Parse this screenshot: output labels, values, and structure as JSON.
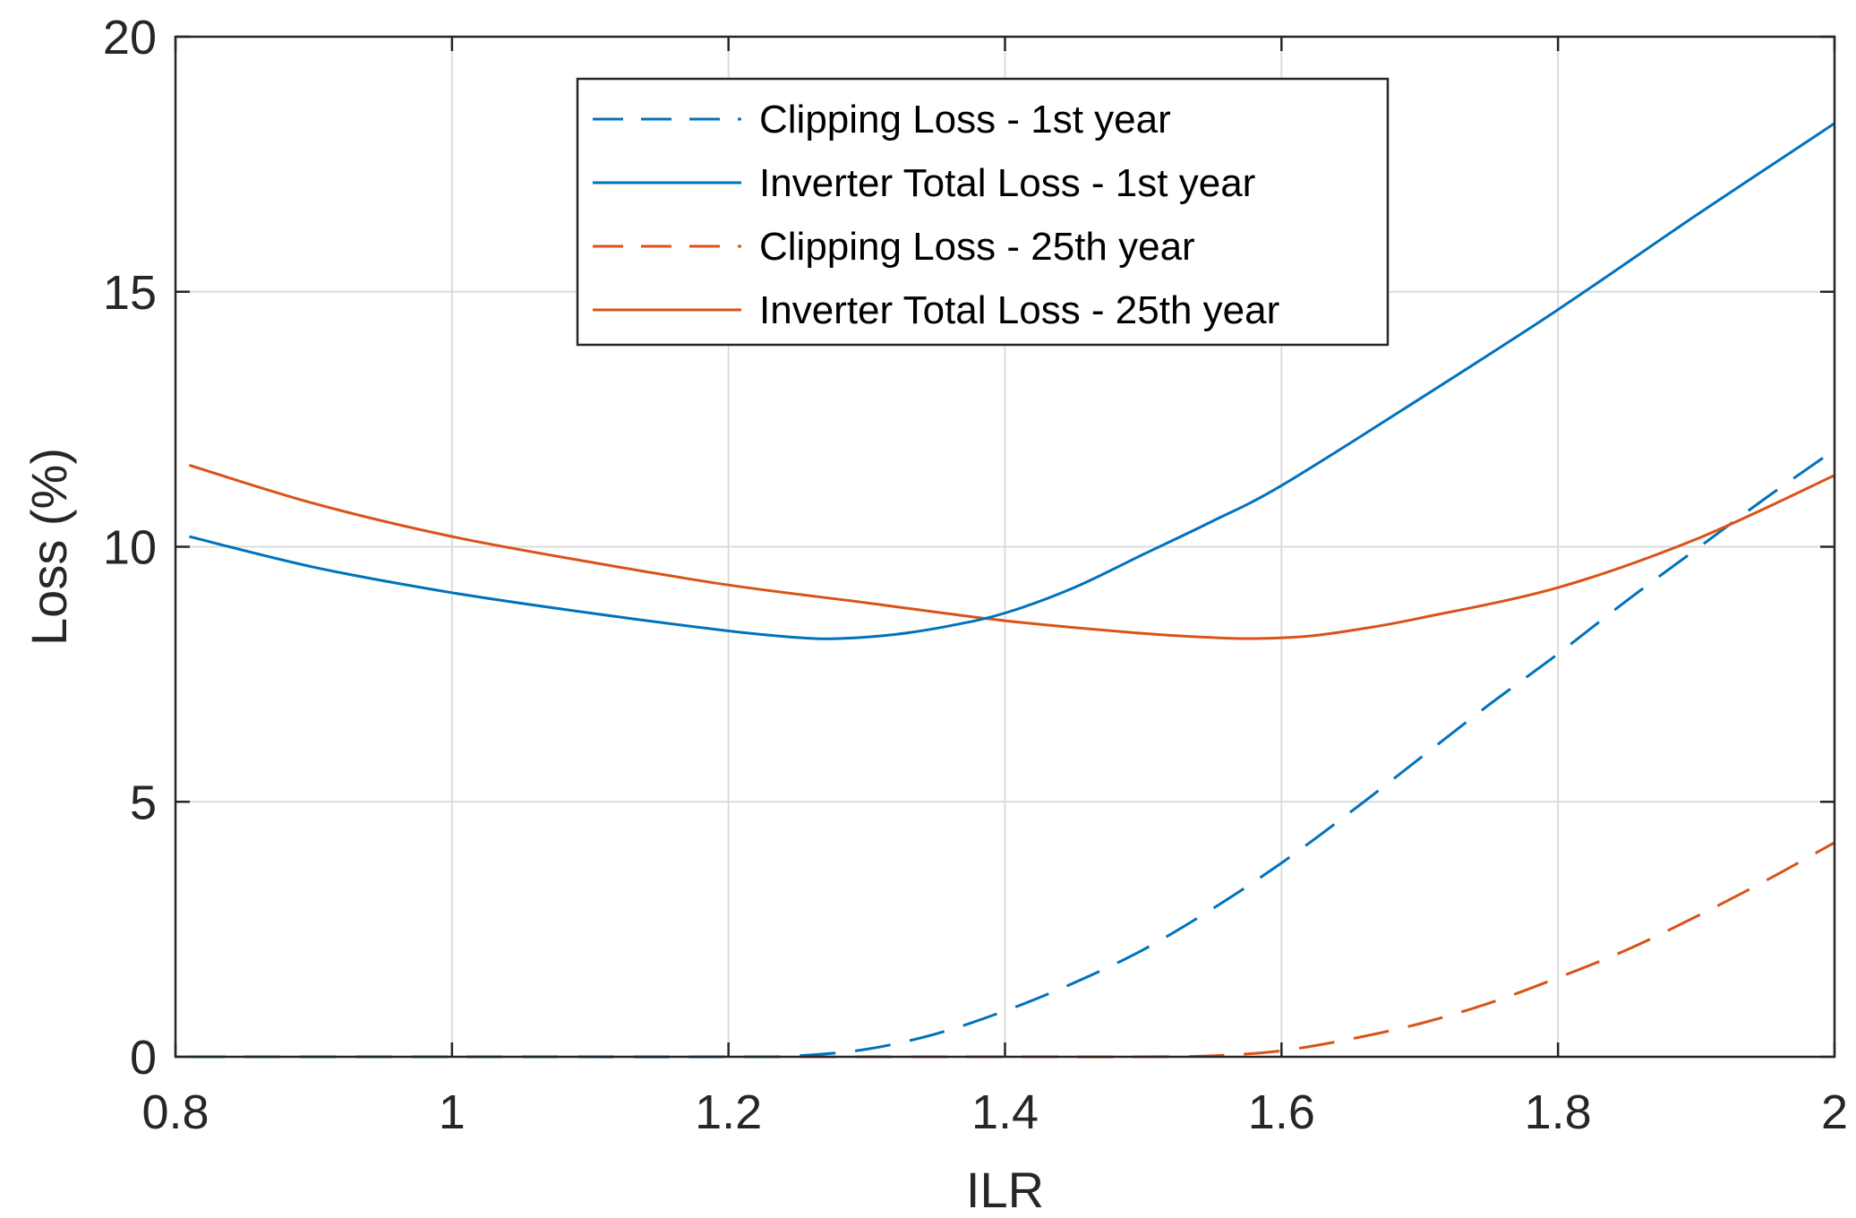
{
  "chart_data": {
    "type": "line",
    "title": "",
    "xlabel": "ILR",
    "ylabel": "Loss (%)",
    "xlim": [
      0.8,
      2
    ],
    "ylim": [
      0,
      20
    ],
    "xticks": [
      0.8,
      1,
      1.2,
      1.4,
      1.6,
      1.8,
      2
    ],
    "xtick_labels": [
      "0.8",
      "1",
      "1.2",
      "1.4",
      "1.6",
      "1.8",
      "2"
    ],
    "yticks": [
      0,
      5,
      10,
      15,
      20
    ],
    "ytick_labels": [
      "0",
      "5",
      "10",
      "15",
      "20"
    ],
    "grid": true,
    "legend_position": "top-center",
    "series": [
      {
        "name": "Clipping Loss - 1st year",
        "color": "#0072BD",
        "style": "dashed",
        "x": [
          0.81,
          1.0,
          1.2,
          1.25,
          1.3,
          1.35,
          1.4,
          1.45,
          1.5,
          1.55,
          1.6,
          1.65,
          1.7,
          1.75,
          1.8,
          1.85,
          1.9,
          1.95,
          2.0
        ],
        "y": [
          0,
          0,
          0,
          0.02,
          0.15,
          0.45,
          0.9,
          1.45,
          2.1,
          2.9,
          3.8,
          4.8,
          5.85,
          6.9,
          7.9,
          8.95,
          9.95,
          10.95,
          11.9
        ]
      },
      {
        "name": "Inverter Total Loss - 1st year",
        "color": "#0072BD",
        "style": "solid",
        "x": [
          0.81,
          0.9,
          1.0,
          1.1,
          1.2,
          1.25,
          1.28,
          1.32,
          1.36,
          1.4,
          1.45,
          1.5,
          1.55,
          1.6,
          1.7,
          1.8,
          1.9,
          2.0
        ],
        "y": [
          10.2,
          9.6,
          9.1,
          8.7,
          8.35,
          8.22,
          8.2,
          8.28,
          8.45,
          8.7,
          9.2,
          9.85,
          10.5,
          11.2,
          12.9,
          14.65,
          16.5,
          18.3
        ]
      },
      {
        "name": "Clipping Loss - 25th year",
        "color": "#D95319",
        "style": "dashed",
        "x": [
          0.81,
          1.0,
          1.2,
          1.4,
          1.5,
          1.55,
          1.6,
          1.65,
          1.7,
          1.75,
          1.8,
          1.85,
          1.9,
          1.95,
          2.0
        ],
        "y": [
          0,
          0,
          0,
          0,
          0,
          0.02,
          0.12,
          0.35,
          0.65,
          1.05,
          1.55,
          2.1,
          2.75,
          3.45,
          4.2
        ]
      },
      {
        "name": "Inverter Total Loss - 25th year",
        "color": "#D95319",
        "style": "solid",
        "x": [
          0.81,
          0.9,
          1.0,
          1.1,
          1.2,
          1.3,
          1.4,
          1.5,
          1.55,
          1.58,
          1.62,
          1.66,
          1.7,
          1.8,
          1.9,
          2.0
        ],
        "y": [
          11.6,
          10.85,
          10.2,
          9.7,
          9.25,
          8.9,
          8.55,
          8.3,
          8.22,
          8.2,
          8.25,
          8.4,
          8.6,
          9.2,
          10.15,
          11.4
        ]
      }
    ]
  }
}
